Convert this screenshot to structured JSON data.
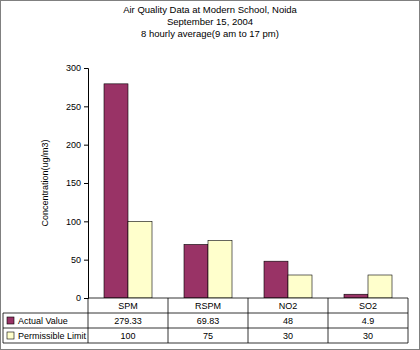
{
  "chart_data": {
    "type": "bar",
    "title": "Air Quality Data at Modern School, Noida",
    "subtitle": [
      "September 15, 2004",
      "8 hourly average(9 am to 17 pm)"
    ],
    "y_label": "Concentration(ug/m3)",
    "categories": [
      "SPM",
      "RSPM",
      "NO2",
      "SO2"
    ],
    "series": [
      {
        "name": "Actual Value",
        "color": "#993366",
        "values": [
          279.33,
          69.83,
          48,
          4.9
        ]
      },
      {
        "name": "Permissible Limit",
        "color": "#ffffcc",
        "values": [
          100,
          75,
          30,
          30
        ]
      }
    ],
    "ylim": [
      0,
      300
    ],
    "yticks": [
      0,
      50,
      100,
      150,
      200,
      250,
      300
    ],
    "grid": false
  }
}
